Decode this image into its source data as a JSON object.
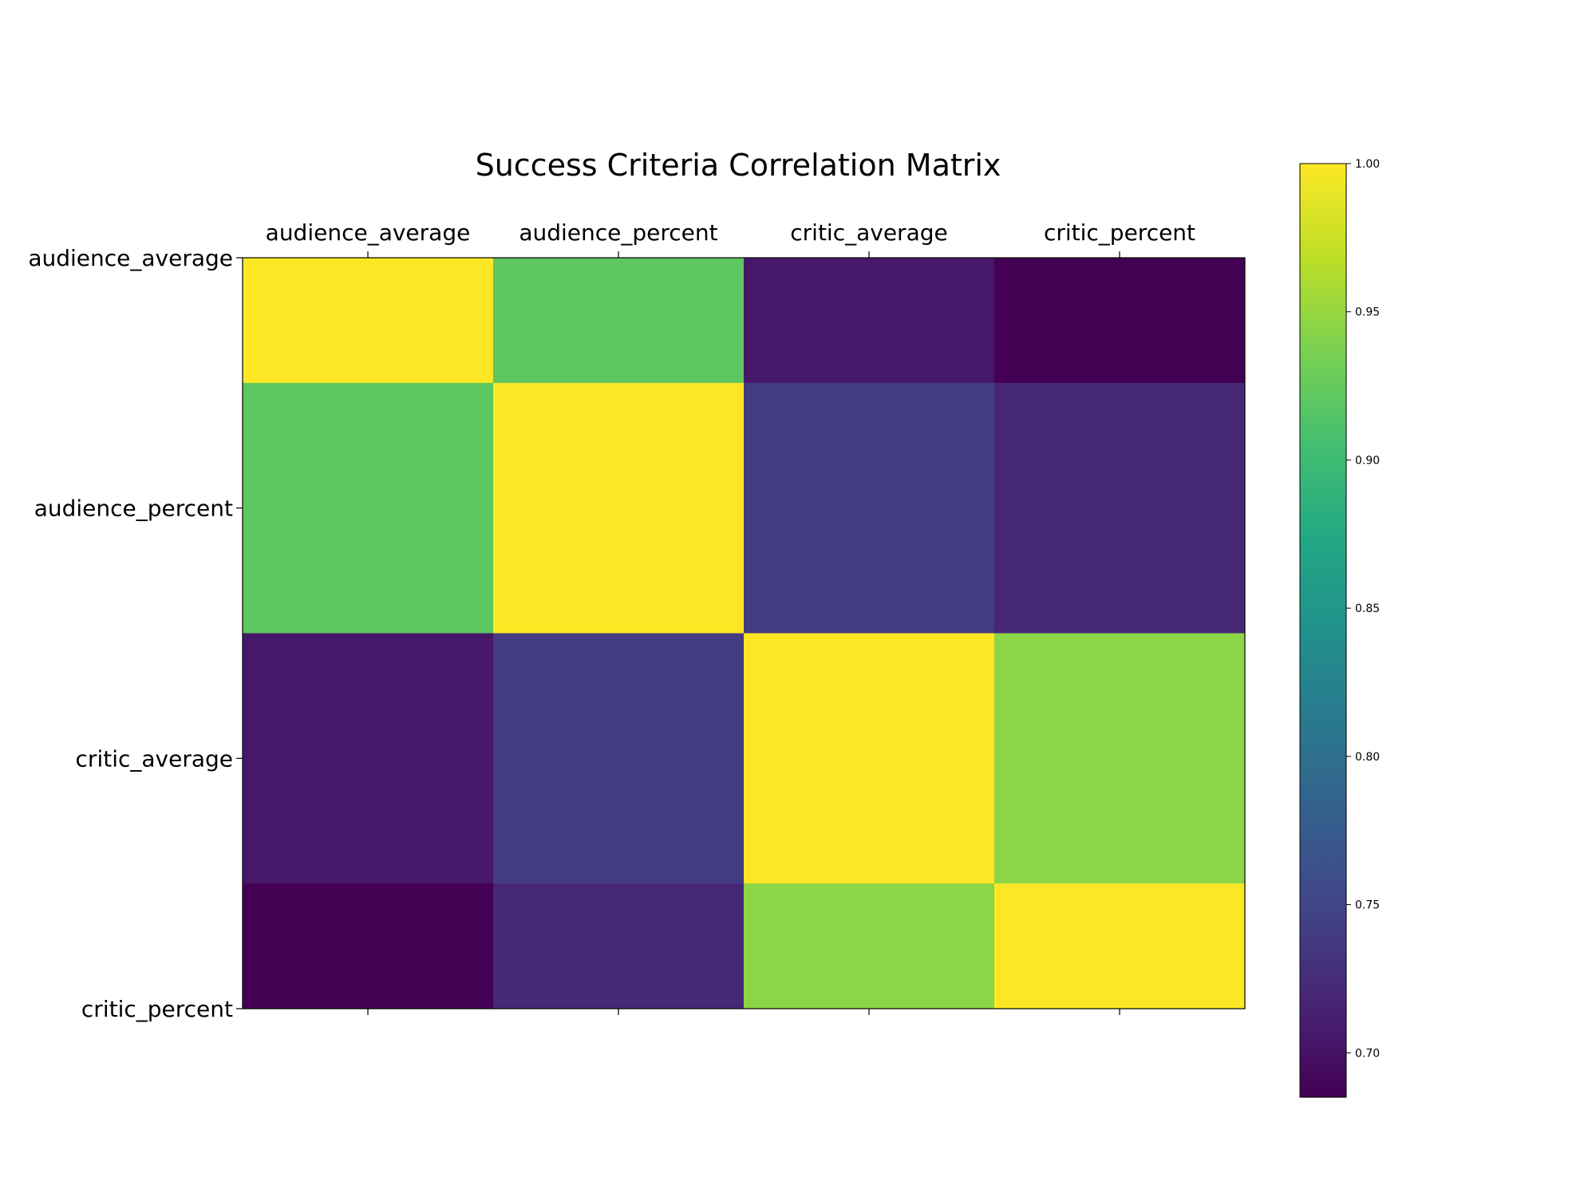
{
  "chart_data": {
    "type": "heatmap",
    "title": "Success Criteria Correlation Matrix",
    "x_labels": [
      "audience_average",
      "audience_percent",
      "critic_average",
      "critic_percent"
    ],
    "y_labels": [
      "audience_average",
      "audience_percent",
      "critic_average",
      "critic_percent"
    ],
    "values": [
      [
        1.0,
        0.92,
        0.705,
        0.685
      ],
      [
        0.92,
        1.0,
        0.74,
        0.72
      ],
      [
        0.705,
        0.74,
        1.0,
        0.945
      ],
      [
        0.685,
        0.72,
        0.945,
        1.0
      ]
    ],
    "colorbar": {
      "min": 0.685,
      "max": 1.0,
      "ticks": [
        0.7,
        0.75,
        0.8,
        0.85,
        0.9,
        0.95,
        1.0
      ],
      "tick_labels": [
        "0.70",
        "0.75",
        "0.80",
        "0.85",
        "0.90",
        "0.95",
        "1.00"
      ],
      "colormap": "viridis"
    },
    "x_tick_position": "top"
  }
}
